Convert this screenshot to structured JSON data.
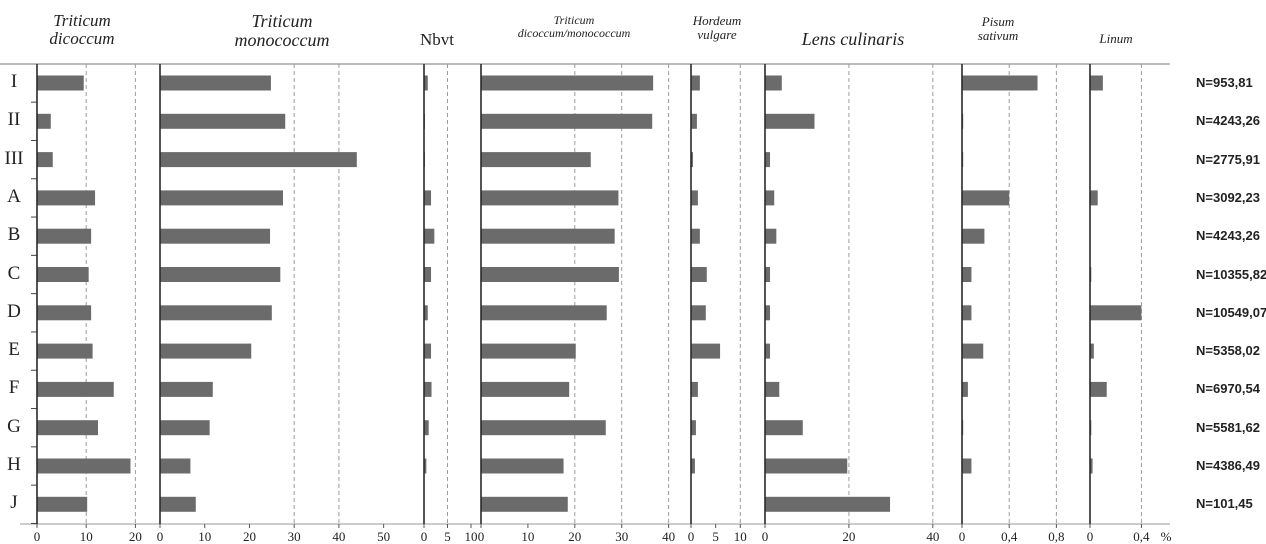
{
  "chart_data": {
    "type": "bar",
    "orientation": "horizontal",
    "categories": [
      "I",
      "II",
      "III",
      "A",
      "B",
      "C",
      "D",
      "E",
      "F",
      "G",
      "H",
      "J"
    ],
    "totals": [
      "N=953,81",
      "N=4243,26",
      "N=2775,91",
      "N=3092,23",
      "N=4243,26",
      "N=10355,82",
      "N=10549,07",
      "N=5358,02",
      "N=6970,54",
      "N=5581,62",
      "N=4386,49",
      "N=101,45"
    ],
    "unit": "%",
    "bar_color": "#6b6b6b",
    "panels": [
      {
        "title": [
          "Triticum",
          "dicoccum"
        ],
        "italic": true,
        "xlim": [
          0,
          25
        ],
        "ticks": [
          0,
          10,
          20
        ],
        "tick_labels": [
          "0",
          "10",
          "20"
        ],
        "gridlines": [
          10,
          20
        ],
        "values": [
          9.5,
          2.8,
          3.2,
          11.8,
          11.0,
          10.5,
          11.0,
          11.3,
          15.6,
          12.4,
          19.0,
          10.2
        ]
      },
      {
        "title": [
          "Triticum",
          "monococcum"
        ],
        "italic": true,
        "xlim": [
          0,
          55
        ],
        "ticks": [
          0,
          10,
          20,
          30,
          40,
          50
        ],
        "tick_labels": [
          "0",
          "10",
          "20",
          "30",
          "40",
          "50"
        ],
        "gridlines": [
          30,
          40
        ],
        "values": [
          24.8,
          28.0,
          44.0,
          27.5,
          24.6,
          26.9,
          25.0,
          20.4,
          11.8,
          11.1,
          6.8,
          8.0
        ]
      },
      {
        "title": [
          "Nbvt"
        ],
        "italic": false,
        "xlim": [
          0,
          10
        ],
        "ticks": [
          0,
          5,
          10
        ],
        "tick_labels": [
          "0",
          "5",
          "10"
        ],
        "gridlines": [
          5
        ],
        "values": [
          0.8,
          0.2,
          0.2,
          1.5,
          2.2,
          1.5,
          0.8,
          1.5,
          1.6,
          1.0,
          0.5,
          0.1
        ]
      },
      {
        "title": [
          "Triticum",
          "dicoccum/monococcum"
        ],
        "italic": true,
        "xlim": [
          0,
          42
        ],
        "ticks": [
          0,
          10,
          20,
          30,
          40
        ],
        "tick_labels": [
          "0",
          "10",
          "20",
          "30",
          "40"
        ],
        "gridlines": [
          20,
          30,
          40
        ],
        "values": [
          36.7,
          36.5,
          23.4,
          29.3,
          28.5,
          29.4,
          26.8,
          20.2,
          18.8,
          26.6,
          17.6,
          18.5
        ]
      },
      {
        "title": [
          "Hordeum",
          "vulgare"
        ],
        "italic": true,
        "xlim": [
          0,
          14
        ],
        "ticks": [
          0,
          5,
          10
        ],
        "tick_labels": [
          "0",
          "5",
          "10"
        ],
        "gridlines": [
          10
        ],
        "values": [
          1.8,
          1.2,
          0.4,
          1.4,
          1.8,
          3.2,
          3.0,
          5.9,
          1.4,
          1.0,
          0.8,
          0.1
        ]
      },
      {
        "title": [
          "Lens culinaris"
        ],
        "italic": true,
        "xlim": [
          0,
          46
        ],
        "ticks": [
          0,
          20,
          40
        ],
        "tick_labels": [
          "0",
          "20",
          "40"
        ],
        "gridlines": [
          20,
          40
        ],
        "values": [
          4.0,
          11.8,
          1.2,
          2.2,
          2.7,
          1.2,
          1.2,
          1.2,
          3.4,
          9.0,
          19.6,
          29.8
        ]
      },
      {
        "title": [
          "Pisum",
          "sativum"
        ],
        "italic": true,
        "xlim": [
          0,
          1.0
        ],
        "ticks": [
          0,
          0.4,
          0.8
        ],
        "tick_labels": [
          "0",
          "0,4",
          "0,8"
        ],
        "gridlines": [
          0.4,
          0.8
        ],
        "values": [
          0.64,
          0.01,
          0.01,
          0.4,
          0.19,
          0.08,
          0.08,
          0.18,
          0.05,
          0.01,
          0.08,
          0.0
        ]
      },
      {
        "title": [
          "Linum"
        ],
        "italic": true,
        "xlim": [
          0,
          0.56
        ],
        "ticks": [
          0,
          0.4
        ],
        "tick_labels": [
          "0",
          "0,4"
        ],
        "gridlines": [
          0.4
        ],
        "values": [
          0.1,
          0.0,
          0.0,
          0.06,
          0.0,
          0.01,
          0.4,
          0.03,
          0.13,
          0.01,
          0.02,
          0.0
        ]
      }
    ]
  }
}
